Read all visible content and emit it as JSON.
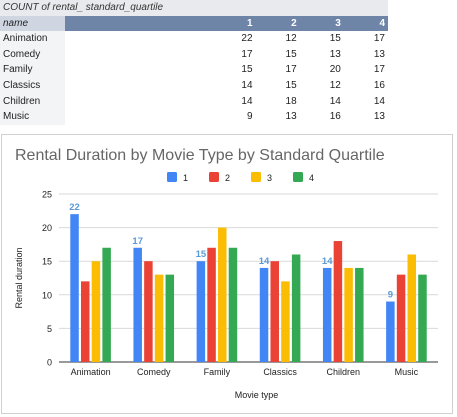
{
  "pivot": {
    "caption": "COUNT of rental_ standard_quartile",
    "row_header": "name",
    "columns": [
      "1",
      "2",
      "3",
      "4"
    ],
    "rows": [
      {
        "name": "Animation",
        "values": [
          22,
          12,
          15,
          17
        ]
      },
      {
        "name": "Comedy",
        "values": [
          17,
          15,
          13,
          13
        ]
      },
      {
        "name": "Family",
        "values": [
          15,
          17,
          20,
          17
        ]
      },
      {
        "name": "Classics",
        "values": [
          14,
          15,
          12,
          16
        ]
      },
      {
        "name": "Children",
        "values": [
          14,
          18,
          14,
          14
        ]
      },
      {
        "name": "Music",
        "values": [
          9,
          13,
          16,
          13
        ]
      }
    ]
  },
  "chart_data": {
    "type": "bar",
    "title": "Rental Duration by Movie Type by Standard Quartile",
    "xlabel": "Movie type",
    "ylabel": "Rental duration",
    "ylim": [
      0,
      25
    ],
    "yticks": [
      0,
      5,
      10,
      15,
      20,
      25
    ],
    "grid": true,
    "legend_position": "top",
    "categories": [
      "Animation",
      "Comedy",
      "Family",
      "Classics",
      "Children",
      "Music"
    ],
    "series": [
      {
        "name": "1",
        "color": "#4285f4",
        "values": [
          22,
          17,
          15,
          14,
          14,
          9
        ]
      },
      {
        "name": "2",
        "color": "#ea4335",
        "values": [
          12,
          15,
          17,
          15,
          18,
          13
        ]
      },
      {
        "name": "3",
        "color": "#fbbc04",
        "values": [
          15,
          13,
          20,
          12,
          14,
          16
        ]
      },
      {
        "name": "4",
        "color": "#34a853",
        "values": [
          17,
          13,
          17,
          16,
          14,
          13
        ]
      }
    ],
    "data_labels": {
      "series": "1",
      "color": "#5b9bd5",
      "values": [
        "22",
        "17",
        "15",
        "14",
        "14",
        "9"
      ]
    }
  }
}
